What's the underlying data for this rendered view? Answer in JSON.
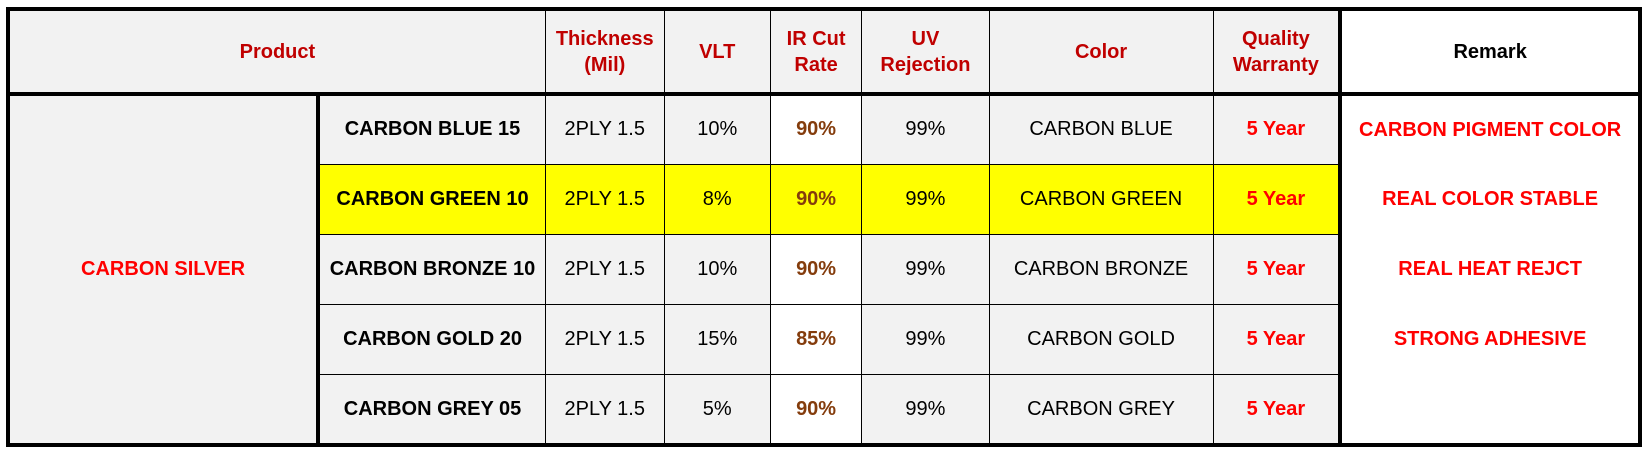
{
  "headers": {
    "product": "Product",
    "thickness_line1": "Thickness",
    "thickness_line2": "(Mil)",
    "vlt": "VLT",
    "ir_line1": "IR Cut",
    "ir_line2": "Rate",
    "uv_line1": "UV",
    "uv_line2": "Rejection",
    "color": "Color",
    "warranty_line1": "Quality",
    "warranty_line2": "Warranty",
    "remark": "Remark"
  },
  "group": "CARBON SILVER",
  "rows": [
    {
      "name": "CARBON BLUE 15",
      "thickness": "2PLY 1.5",
      "vlt": "10%",
      "ir": "90%",
      "uv": "99%",
      "color": "CARBON BLUE",
      "warranty": "5 Year",
      "remark": "CARBON PIGMENT COLOR",
      "highlight": false
    },
    {
      "name": "CARBON GREEN 10",
      "thickness": "2PLY 1.5",
      "vlt": "8%",
      "ir": "90%",
      "uv": "99%",
      "color": "CARBON GREEN",
      "warranty": "5 Year",
      "remark": "REAL COLOR STABLE",
      "highlight": true
    },
    {
      "name": "CARBON BRONZE 10",
      "thickness": "2PLY 1.5",
      "vlt": "10%",
      "ir": "90%",
      "uv": "99%",
      "color": "CARBON BRONZE",
      "warranty": "5 Year",
      "remark": "REAL HEAT REJCT",
      "highlight": false
    },
    {
      "name": "CARBON GOLD 20",
      "thickness": "2PLY 1.5",
      "vlt": "15%",
      "ir": "85%",
      "uv": "99%",
      "color": "CARBON GOLD",
      "warranty": "5 Year",
      "remark": "STRONG ADHESIVE",
      "highlight": false
    },
    {
      "name": "CARBON GREY 05",
      "thickness": "2PLY 1.5",
      "vlt": "5%",
      "ir": "90%",
      "uv": "99%",
      "color": "CARBON GREY",
      "warranty": "5 Year",
      "remark": "",
      "highlight": false
    }
  ],
  "colors": {
    "header_text": "#c00000",
    "group_text": "#ff0000",
    "ir_text": "#843c0c",
    "warranty_text": "#ff0000",
    "highlight_bg": "#ffff00",
    "cell_bg": "#f2f2f2"
  }
}
